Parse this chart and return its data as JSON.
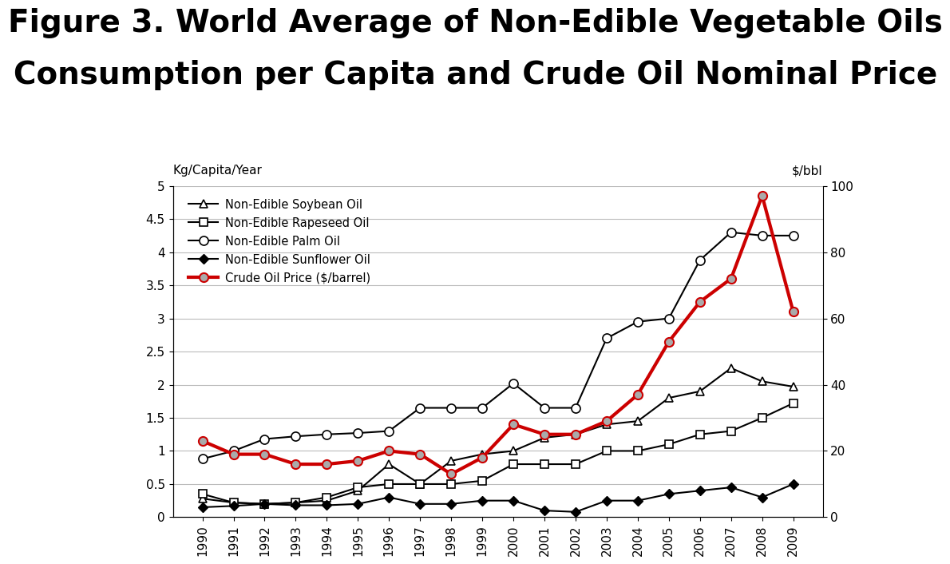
{
  "years": [
    1990,
    1991,
    1992,
    1993,
    1994,
    1995,
    1996,
    1997,
    1998,
    1999,
    2000,
    2001,
    2002,
    2003,
    2004,
    2005,
    2006,
    2007,
    2008,
    2009
  ],
  "soybean": [
    0.28,
    0.22,
    0.2,
    0.22,
    0.25,
    0.4,
    0.8,
    0.5,
    0.85,
    0.95,
    1.0,
    1.2,
    1.25,
    1.4,
    1.45,
    1.8,
    1.9,
    2.25,
    2.05,
    1.97
  ],
  "rapeseed": [
    0.35,
    0.22,
    0.2,
    0.22,
    0.3,
    0.45,
    0.5,
    0.5,
    0.5,
    0.55,
    0.8,
    0.8,
    0.8,
    1.0,
    1.0,
    1.1,
    1.25,
    1.3,
    1.5,
    1.72
  ],
  "palm": [
    0.88,
    1.0,
    1.18,
    1.22,
    1.25,
    1.27,
    1.3,
    1.65,
    1.65,
    1.65,
    2.02,
    1.65,
    1.65,
    2.7,
    2.95,
    3.0,
    3.88,
    4.3,
    4.25,
    4.25
  ],
  "sunflower": [
    0.15,
    0.17,
    0.2,
    0.18,
    0.18,
    0.2,
    0.3,
    0.2,
    0.2,
    0.25,
    0.25,
    0.1,
    0.08,
    0.25,
    0.25,
    0.35,
    0.4,
    0.45,
    0.3,
    0.5
  ],
  "crude_oil": [
    23,
    19,
    19,
    16,
    16,
    17,
    20,
    19,
    13,
    18,
    28,
    25,
    25,
    29,
    37,
    53,
    65,
    72,
    97,
    62
  ],
  "title_line1": "Figure 3. World Average of Non-Edible Vegetable Oils",
  "title_line2": "Consumption per Capita and Crude Oil Nominal Price",
  "ylabel_left": "Kg/Capita/Year",
  "ylabel_right": "$/bbl",
  "legend_labels": [
    "Non-Edible Soybean Oil",
    "Non-Edible Rapeseed Oil",
    "Non-Edible Palm Oil",
    "Non-Edible Sunflower Oil",
    "Crude Oil Price ($/barrel)"
  ],
  "ylim_left": [
    0,
    5
  ],
  "ylim_right": [
    0,
    100
  ],
  "yticks_left": [
    0,
    0.5,
    1.0,
    1.5,
    2.0,
    2.5,
    3.0,
    3.5,
    4.0,
    4.5,
    5.0
  ],
  "yticks_right": [
    0,
    20,
    40,
    60,
    80,
    100
  ],
  "background_color": "#ffffff",
  "title_fontsize": 28,
  "axis_label_fontsize": 11,
  "tick_fontsize": 11,
  "legend_fontsize": 10.5
}
